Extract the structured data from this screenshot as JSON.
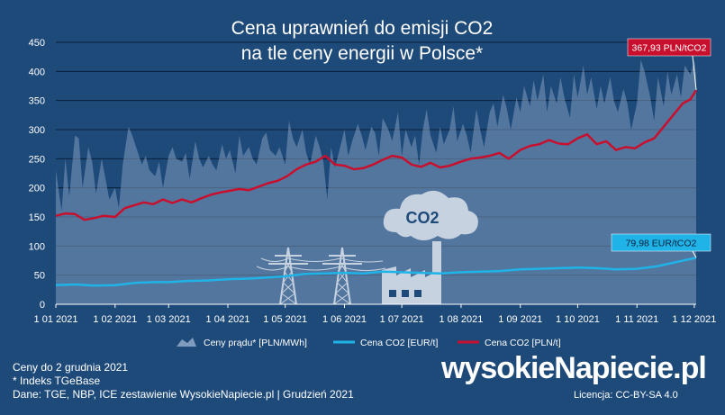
{
  "chart_data": {
    "type": "line",
    "title_lines": [
      "Cena uprawnień do emisji CO2",
      "na tle ceny energii w Polsce*"
    ],
    "ylim": [
      0,
      450
    ],
    "yticks": [
      0,
      50,
      100,
      150,
      200,
      250,
      300,
      350,
      400,
      450
    ],
    "x_range": [
      "2021-01-01",
      "2021-12-02"
    ],
    "x_ticks": [
      {
        "date": "2021-01-01",
        "label": "1 01 2021"
      },
      {
        "date": "2021-02-01",
        "label": "1 02 2021"
      },
      {
        "date": "2021-03-01",
        "label": "1 03 2021"
      },
      {
        "date": "2021-04-01",
        "label": "1 04 2021"
      },
      {
        "date": "2021-05-01",
        "label": "1 05 2021"
      },
      {
        "date": "2021-06-01",
        "label": "1 06 2021"
      },
      {
        "date": "2021-07-01",
        "label": "1 07 2021"
      },
      {
        "date": "2021-08-01",
        "label": "1 08 2021"
      },
      {
        "date": "2021-09-01",
        "label": "1 09 2021"
      },
      {
        "date": "2021-10-01",
        "label": "1 10 2021"
      },
      {
        "date": "2021-11-01",
        "label": "1 11 2021"
      },
      {
        "date": "2021-12-01",
        "label": "1 12 2021"
      }
    ],
    "grid": true,
    "legend_position": "bottom",
    "series": [
      {
        "name": "Ceny prądu* [PLN/MWh]",
        "kind": "area",
        "color": "#7f9bbd",
        "points": [
          [
            "2021-01-01",
            230
          ],
          [
            "2021-01-04",
            160
          ],
          [
            "2021-01-06",
            250
          ],
          [
            "2021-01-08",
            185
          ],
          [
            "2021-01-11",
            290
          ],
          [
            "2021-01-13",
            285
          ],
          [
            "2021-01-15",
            200
          ],
          [
            "2021-01-18",
            270
          ],
          [
            "2021-01-20",
            245
          ],
          [
            "2021-01-22",
            190
          ],
          [
            "2021-01-25",
            250
          ],
          [
            "2021-01-27",
            215
          ],
          [
            "2021-01-29",
            180
          ],
          [
            "2021-02-01",
            200
          ],
          [
            "2021-02-03",
            165
          ],
          [
            "2021-02-05",
            240
          ],
          [
            "2021-02-08",
            305
          ],
          [
            "2021-02-10",
            290
          ],
          [
            "2021-02-12",
            270
          ],
          [
            "2021-02-15",
            240
          ],
          [
            "2021-02-17",
            255
          ],
          [
            "2021-02-19",
            230
          ],
          [
            "2021-02-22",
            220
          ],
          [
            "2021-02-24",
            245
          ],
          [
            "2021-02-26",
            200
          ],
          [
            "2021-03-01",
            255
          ],
          [
            "2021-03-03",
            270
          ],
          [
            "2021-03-05",
            250
          ],
          [
            "2021-03-08",
            245
          ],
          [
            "2021-03-10",
            260
          ],
          [
            "2021-03-12",
            215
          ],
          [
            "2021-03-15",
            280
          ],
          [
            "2021-03-17",
            250
          ],
          [
            "2021-03-19",
            235
          ],
          [
            "2021-03-22",
            255
          ],
          [
            "2021-03-24",
            240
          ],
          [
            "2021-03-26",
            230
          ],
          [
            "2021-03-29",
            275
          ],
          [
            "2021-03-31",
            250
          ],
          [
            "2021-04-02",
            265
          ],
          [
            "2021-04-05",
            225
          ],
          [
            "2021-04-07",
            290
          ],
          [
            "2021-04-09",
            255
          ],
          [
            "2021-04-12",
            270
          ],
          [
            "2021-04-14",
            250
          ],
          [
            "2021-04-16",
            240
          ],
          [
            "2021-04-19",
            285
          ],
          [
            "2021-04-21",
            295
          ],
          [
            "2021-04-23",
            265
          ],
          [
            "2021-04-26",
            255
          ],
          [
            "2021-04-28",
            270
          ],
          [
            "2021-05-01",
            240
          ],
          [
            "2021-05-03",
            315
          ],
          [
            "2021-05-05",
            285
          ],
          [
            "2021-05-07",
            270
          ],
          [
            "2021-05-10",
            300
          ],
          [
            "2021-05-12",
            260
          ],
          [
            "2021-05-14",
            240
          ],
          [
            "2021-05-17",
            290
          ],
          [
            "2021-05-19",
            270
          ],
          [
            "2021-05-21",
            245
          ],
          [
            "2021-05-23",
            180
          ],
          [
            "2021-05-25",
            270
          ],
          [
            "2021-05-27",
            235
          ],
          [
            "2021-05-29",
            260
          ],
          [
            "2021-06-01",
            300
          ],
          [
            "2021-06-03",
            255
          ],
          [
            "2021-06-05",
            280
          ],
          [
            "2021-06-08",
            310
          ],
          [
            "2021-06-10",
            290
          ],
          [
            "2021-06-12",
            265
          ],
          [
            "2021-06-15",
            305
          ],
          [
            "2021-06-17",
            295
          ],
          [
            "2021-06-19",
            255
          ],
          [
            "2021-06-21",
            320
          ],
          [
            "2021-06-24",
            300
          ],
          [
            "2021-06-26",
            280
          ],
          [
            "2021-06-29",
            330
          ],
          [
            "2021-07-01",
            255
          ],
          [
            "2021-07-03",
            300
          ],
          [
            "2021-07-06",
            270
          ],
          [
            "2021-07-08",
            290
          ],
          [
            "2021-07-10",
            240
          ],
          [
            "2021-07-12",
            300
          ],
          [
            "2021-07-14",
            335
          ],
          [
            "2021-07-16",
            290
          ],
          [
            "2021-07-19",
            260
          ],
          [
            "2021-07-21",
            305
          ],
          [
            "2021-07-23",
            275
          ],
          [
            "2021-07-26",
            300
          ],
          [
            "2021-07-28",
            340
          ],
          [
            "2021-07-30",
            280
          ],
          [
            "2021-08-02",
            310
          ],
          [
            "2021-08-04",
            290
          ],
          [
            "2021-08-06",
            260
          ],
          [
            "2021-08-09",
            335
          ],
          [
            "2021-08-11",
            300
          ],
          [
            "2021-08-13",
            270
          ],
          [
            "2021-08-16",
            330
          ],
          [
            "2021-08-18",
            345
          ],
          [
            "2021-08-20",
            305
          ],
          [
            "2021-08-23",
            360
          ],
          [
            "2021-08-25",
            335
          ],
          [
            "2021-08-27",
            300
          ],
          [
            "2021-08-30",
            355
          ],
          [
            "2021-09-01",
            330
          ],
          [
            "2021-09-03",
            375
          ],
          [
            "2021-09-06",
            340
          ],
          [
            "2021-09-08",
            385
          ],
          [
            "2021-09-10",
            350
          ],
          [
            "2021-09-13",
            395
          ],
          [
            "2021-09-15",
            330
          ],
          [
            "2021-09-17",
            375
          ],
          [
            "2021-09-20",
            345
          ],
          [
            "2021-09-22",
            390
          ],
          [
            "2021-09-24",
            355
          ],
          [
            "2021-09-27",
            320
          ],
          [
            "2021-09-29",
            395
          ],
          [
            "2021-10-01",
            355
          ],
          [
            "2021-10-04",
            410
          ],
          [
            "2021-10-06",
            360
          ],
          [
            "2021-10-08",
            390
          ],
          [
            "2021-10-11",
            335
          ],
          [
            "2021-10-13",
            375
          ],
          [
            "2021-10-15",
            345
          ],
          [
            "2021-10-18",
            390
          ],
          [
            "2021-10-20",
            350
          ],
          [
            "2021-10-22",
            330
          ],
          [
            "2021-10-25",
            370
          ],
          [
            "2021-10-27",
            345
          ],
          [
            "2021-10-29",
            300
          ],
          [
            "2021-11-01",
            345
          ],
          [
            "2021-11-03",
            420
          ],
          [
            "2021-11-05",
            400
          ],
          [
            "2021-11-08",
            355
          ],
          [
            "2021-11-10",
            315
          ],
          [
            "2021-11-12",
            390
          ],
          [
            "2021-11-15",
            340
          ],
          [
            "2021-11-17",
            400
          ],
          [
            "2021-11-19",
            360
          ],
          [
            "2021-11-22",
            395
          ],
          [
            "2021-11-24",
            355
          ],
          [
            "2021-11-26",
            410
          ],
          [
            "2021-11-29",
            395
          ],
          [
            "2021-12-01",
            420
          ],
          [
            "2021-12-02",
            395
          ]
        ]
      },
      {
        "name": "Cena CO2 [EUR/t]",
        "kind": "line",
        "color": "#1fb3e8",
        "points": [
          [
            "2021-01-01",
            33
          ],
          [
            "2021-01-11",
            34
          ],
          [
            "2021-01-21",
            32
          ],
          [
            "2021-02-01",
            33
          ],
          [
            "2021-02-12",
            37
          ],
          [
            "2021-02-22",
            38
          ],
          [
            "2021-03-01",
            38
          ],
          [
            "2021-03-11",
            40
          ],
          [
            "2021-03-22",
            41
          ],
          [
            "2021-04-01",
            43
          ],
          [
            "2021-04-12",
            44
          ],
          [
            "2021-04-22",
            46
          ],
          [
            "2021-05-01",
            48
          ],
          [
            "2021-05-11",
            52
          ],
          [
            "2021-05-21",
            53
          ],
          [
            "2021-06-01",
            54
          ],
          [
            "2021-06-11",
            53
          ],
          [
            "2021-06-21",
            56
          ],
          [
            "2021-07-01",
            55
          ],
          [
            "2021-07-11",
            54
          ],
          [
            "2021-07-21",
            53
          ],
          [
            "2021-08-01",
            55
          ],
          [
            "2021-08-11",
            56
          ],
          [
            "2021-08-21",
            57
          ],
          [
            "2021-09-01",
            60
          ],
          [
            "2021-09-11",
            61
          ],
          [
            "2021-09-21",
            62
          ],
          [
            "2021-10-01",
            63
          ],
          [
            "2021-10-11",
            62
          ],
          [
            "2021-10-21",
            60
          ],
          [
            "2021-11-01",
            61
          ],
          [
            "2021-11-11",
            65
          ],
          [
            "2021-11-21",
            72
          ],
          [
            "2021-12-02",
            79.98
          ]
        ]
      },
      {
        "name": "Cena CO2 [PLN/t]",
        "kind": "line",
        "color": "#c8102e",
        "points": [
          [
            "2021-01-01",
            152
          ],
          [
            "2021-01-06",
            156
          ],
          [
            "2021-01-11",
            155
          ],
          [
            "2021-01-16",
            145
          ],
          [
            "2021-01-21",
            148
          ],
          [
            "2021-01-26",
            152
          ],
          [
            "2021-02-01",
            150
          ],
          [
            "2021-02-06",
            165
          ],
          [
            "2021-02-11",
            170
          ],
          [
            "2021-02-16",
            175
          ],
          [
            "2021-02-21",
            172
          ],
          [
            "2021-02-26",
            180
          ],
          [
            "2021-03-03",
            174
          ],
          [
            "2021-03-08",
            180
          ],
          [
            "2021-03-13",
            175
          ],
          [
            "2021-03-18",
            182
          ],
          [
            "2021-03-23",
            188
          ],
          [
            "2021-03-28",
            192
          ],
          [
            "2021-04-02",
            195
          ],
          [
            "2021-04-07",
            198
          ],
          [
            "2021-04-12",
            196
          ],
          [
            "2021-04-17",
            202
          ],
          [
            "2021-04-22",
            208
          ],
          [
            "2021-04-27",
            212
          ],
          [
            "2021-05-02",
            220
          ],
          [
            "2021-05-07",
            232
          ],
          [
            "2021-05-12",
            240
          ],
          [
            "2021-05-17",
            245
          ],
          [
            "2021-05-22",
            255
          ],
          [
            "2021-05-27",
            240
          ],
          [
            "2021-06-01",
            238
          ],
          [
            "2021-06-06",
            232
          ],
          [
            "2021-06-11",
            234
          ],
          [
            "2021-06-16",
            240
          ],
          [
            "2021-06-21",
            248
          ],
          [
            "2021-06-26",
            255
          ],
          [
            "2021-07-01",
            252
          ],
          [
            "2021-07-06",
            240
          ],
          [
            "2021-07-11",
            236
          ],
          [
            "2021-07-16",
            243
          ],
          [
            "2021-07-21",
            235
          ],
          [
            "2021-07-26",
            238
          ],
          [
            "2021-08-01",
            245
          ],
          [
            "2021-08-06",
            250
          ],
          [
            "2021-08-11",
            252
          ],
          [
            "2021-08-16",
            255
          ],
          [
            "2021-08-21",
            260
          ],
          [
            "2021-08-26",
            250
          ],
          [
            "2021-09-01",
            265
          ],
          [
            "2021-09-06",
            272
          ],
          [
            "2021-09-11",
            275
          ],
          [
            "2021-09-16",
            282
          ],
          [
            "2021-09-21",
            276
          ],
          [
            "2021-09-26",
            275
          ],
          [
            "2021-10-01",
            285
          ],
          [
            "2021-10-06",
            292
          ],
          [
            "2021-10-11",
            275
          ],
          [
            "2021-10-16",
            280
          ],
          [
            "2021-10-21",
            265
          ],
          [
            "2021-10-26",
            270
          ],
          [
            "2021-10-31",
            268
          ],
          [
            "2021-11-05",
            278
          ],
          [
            "2021-11-10",
            285
          ],
          [
            "2021-11-15",
            305
          ],
          [
            "2021-11-20",
            325
          ],
          [
            "2021-11-25",
            345
          ],
          [
            "2021-11-29",
            352
          ],
          [
            "2021-12-02",
            367.93
          ]
        ]
      }
    ],
    "annotations": [
      {
        "series": "Cena CO2 [PLN/t]",
        "text": "367,93 PLN/tCO2",
        "color": "#c8102e"
      },
      {
        "series": "Cena CO2 [EUR/t]",
        "text": "79,98 EUR/tCO2",
        "color": "#1fb3e8"
      }
    ],
    "illustration_text": "CO2"
  },
  "footer": {
    "notes": [
      "Ceny do 2 grudnia 2021",
      "* Indeks TGeBase",
      "Dane: TGE, NBP, ICE zestawienie WysokieNapiecie.pl   |  Grudzień 2021"
    ],
    "brand": "wysokieNapiecie.pl",
    "license": "Licencja: CC-BY-SA 4.0"
  }
}
